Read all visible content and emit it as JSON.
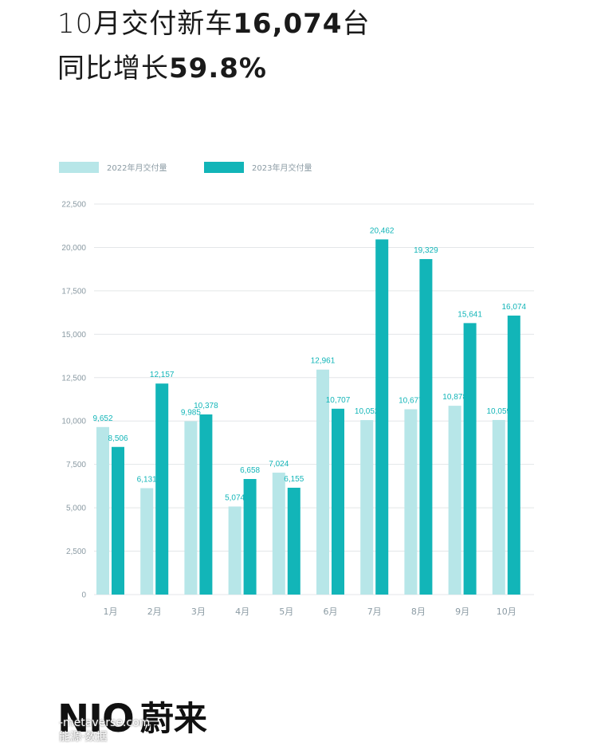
{
  "headline": {
    "line1_prefix": "10月交付新车",
    "line1_number": "16,074",
    "line1_suffix": "台",
    "line2_prefix": "同比增长",
    "line2_number": "59.8%"
  },
  "logo": {
    "brand": "NIO",
    "brand_cn": "蔚来"
  },
  "watermark": {
    "line1": "-metaverse.com",
    "line2": "能源·数据"
  },
  "colors": {
    "series_2022": "#b7e6e8",
    "series_2023": "#12b5b8",
    "axis_text": "#8a9aa3",
    "grid": "#e3e6e8"
  },
  "chart_data": {
    "type": "bar",
    "categories": [
      "1月",
      "2月",
      "3月",
      "4月",
      "5月",
      "6月",
      "7月",
      "8月",
      "9月",
      "10月"
    ],
    "series": [
      {
        "name": "2022年月交付量",
        "values": [
          9652,
          6131,
          9985,
          5074,
          7024,
          12961,
          10052,
          10677,
          10878,
          10059
        ],
        "labels": [
          "9,652",
          "6,131",
          "9,985",
          "5,074",
          "7,024",
          "12,961",
          "10,052",
          "10,677",
          "10,878",
          "10,059"
        ],
        "color": "#b7e6e8"
      },
      {
        "name": "2023年月交付量",
        "values": [
          8506,
          12157,
          10378,
          6658,
          6155,
          10707,
          20462,
          19329,
          15641,
          16074
        ],
        "labels": [
          "8,506",
          "12,157",
          "10,378",
          "6,658",
          "6,155",
          "10,707",
          "20,462",
          "19,329",
          "15,641",
          "16,074"
        ],
        "color": "#12b5b8"
      }
    ],
    "yticks": [
      "0",
      "2,500",
      "5,000",
      "7,500",
      "10,000",
      "12,500",
      "15,000",
      "17,500",
      "20,000",
      "22,500"
    ],
    "ylim": [
      0,
      22500
    ],
    "grid": true,
    "legend_position": "top-left"
  }
}
